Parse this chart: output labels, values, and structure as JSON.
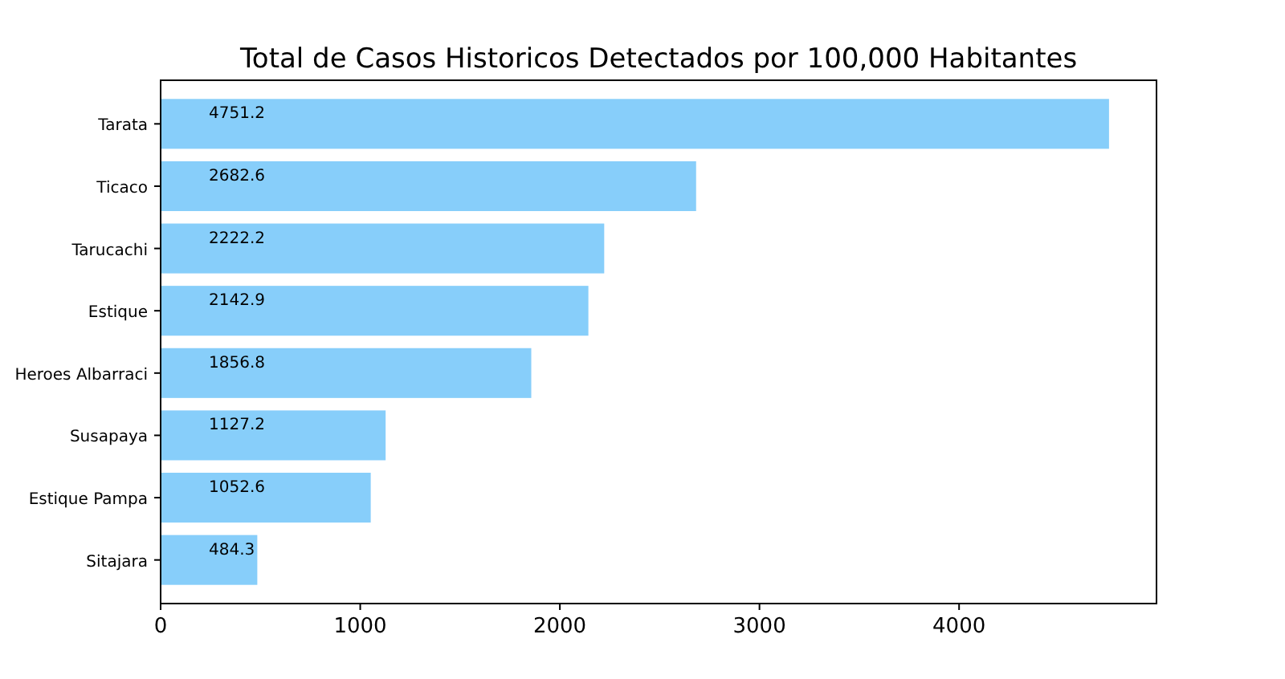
{
  "chart_data": {
    "type": "bar",
    "orientation": "horizontal",
    "title": "Total de Casos Historicos Detectados por 100,000 Habitantes",
    "categories": [
      "Tarata",
      "Ticaco",
      "Tarucachi",
      "Estique",
      "Heroes Albarraci",
      "Susapaya",
      "Estique Pampa",
      "Sitajara"
    ],
    "values": [
      4751.2,
      2682.6,
      2222.2,
      2142.9,
      1856.8,
      1127.2,
      1052.6,
      484.3
    ],
    "color": "#87cefa",
    "xlim": [
      0,
      4989
    ],
    "xticks": [
      0,
      1000,
      2000,
      3000,
      4000
    ],
    "data_labels": true,
    "grid": false
  }
}
